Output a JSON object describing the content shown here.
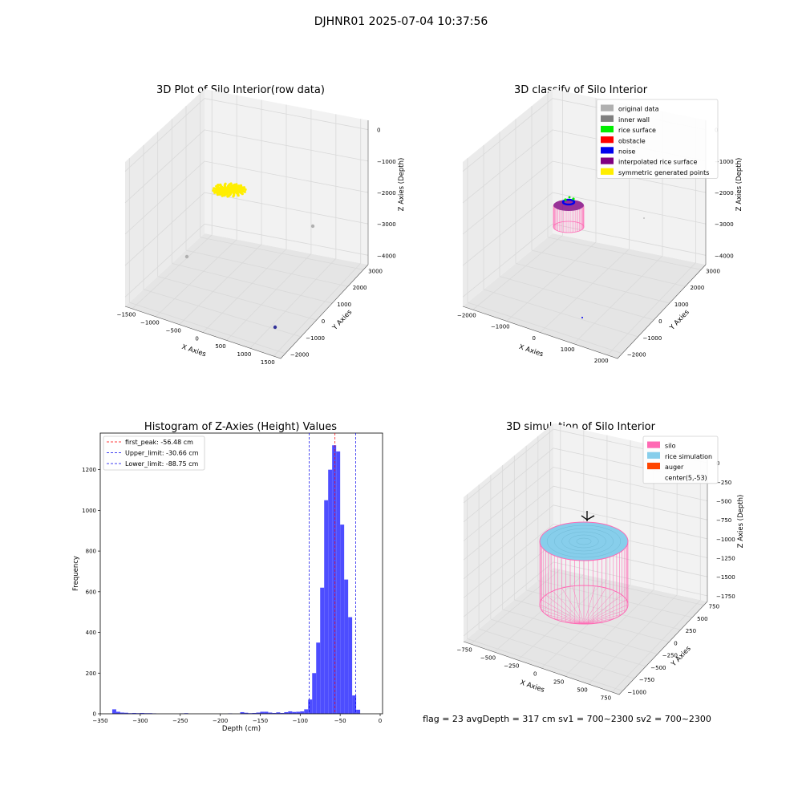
{
  "figure": {
    "suptitle": "DJHNR01 2025-07-04 10:37:56",
    "footer": "flag = 23  avgDepth = 317 cm  sv1 = 700~2300  sv2 = 700~2300"
  },
  "colors": {
    "yellow": "#ffee00",
    "gray": "#b0b0b0",
    "darkgray": "#808080",
    "green": "#00ee00",
    "red": "#ff0000",
    "blue": "#0000ee",
    "purple": "#800080",
    "pink": "#ff69b4",
    "skyblue": "#87ceeb",
    "orange": "#ff4500",
    "hist": "#4d4dff"
  },
  "chart_data": [
    {
      "type": "scatter",
      "title": "3D Plot of Silo Interior(row data)",
      "xlabel": "X Axies",
      "ylabel": "Y Axies",
      "zlabel": "Z Axies (Depth)",
      "x_ticks": [
        "−1500",
        "−1000",
        "−500",
        "0",
        "500",
        "1000",
        "1500"
      ],
      "y_ticks": [
        "−2000",
        "−1000",
        "0",
        "1000",
        "2000",
        "3000"
      ],
      "z_ticks": [
        "0",
        "−1000",
        "−2000",
        "−3000",
        "−4000"
      ]
    },
    {
      "type": "scatter",
      "title": "3D classify of Silo Interior",
      "xlabel": "X Axies",
      "ylabel": "Y Axies",
      "zlabel": "Z Axies (Depth)",
      "x_ticks": [
        "−2000",
        "−1000",
        "0",
        "1000",
        "2000"
      ],
      "y_ticks": [
        "−2000",
        "−1000",
        "0",
        "1000",
        "2000",
        "3000"
      ],
      "z_ticks": [
        "0",
        "−1000",
        "−2000",
        "−3000",
        "−4000"
      ],
      "legend": [
        {
          "label": "original data",
          "color": "#b0b0b0"
        },
        {
          "label": "inner wall",
          "color": "#808080"
        },
        {
          "label": "rice surface",
          "color": "#00ee00"
        },
        {
          "label": "obstacle",
          "color": "#ff0000"
        },
        {
          "label": "noise",
          "color": "#0000ee"
        },
        {
          "label": "interpolated rice surface",
          "color": "#800080"
        },
        {
          "label": "symmetric generated points",
          "color": "#ffee00"
        }
      ],
      "legend_loc": "upper right"
    },
    {
      "type": "bar",
      "title": "Histogram of Z-Axies (Height) Values",
      "xlabel": "Depth (cm)",
      "ylabel": "Frequency",
      "xlim": [
        -350,
        3
      ],
      "ylim": [
        0,
        1380
      ],
      "x_ticks": [
        -350,
        -300,
        -250,
        -200,
        -150,
        -100,
        -50,
        0
      ],
      "y_ticks": [
        0,
        200,
        400,
        600,
        800,
        1000,
        1200
      ],
      "bin_width": 5,
      "bins": [
        {
          "x0": -335,
          "v": 22
        },
        {
          "x0": -330,
          "v": 10
        },
        {
          "x0": -325,
          "v": 6
        },
        {
          "x0": -320,
          "v": 5
        },
        {
          "x0": -315,
          "v": 3
        },
        {
          "x0": -310,
          "v": 4
        },
        {
          "x0": -305,
          "v": 3
        },
        {
          "x0": -300,
          "v": 4
        },
        {
          "x0": -295,
          "v": 3
        },
        {
          "x0": -290,
          "v": 3
        },
        {
          "x0": -285,
          "v": 2
        },
        {
          "x0": -250,
          "v": 2
        },
        {
          "x0": -245,
          "v": 3
        },
        {
          "x0": -190,
          "v": 2
        },
        {
          "x0": -175,
          "v": 8
        },
        {
          "x0": -170,
          "v": 5
        },
        {
          "x0": -165,
          "v": 3
        },
        {
          "x0": -160,
          "v": 4
        },
        {
          "x0": -155,
          "v": 6
        },
        {
          "x0": -150,
          "v": 10
        },
        {
          "x0": -145,
          "v": 10
        },
        {
          "x0": -140,
          "v": 6
        },
        {
          "x0": -135,
          "v": 4
        },
        {
          "x0": -130,
          "v": 7
        },
        {
          "x0": -125,
          "v": 4
        },
        {
          "x0": -120,
          "v": 8
        },
        {
          "x0": -115,
          "v": 12
        },
        {
          "x0": -110,
          "v": 9
        },
        {
          "x0": -105,
          "v": 10
        },
        {
          "x0": -100,
          "v": 12
        },
        {
          "x0": -95,
          "v": 22
        },
        {
          "x0": -90,
          "v": 70
        },
        {
          "x0": -85,
          "v": 200
        },
        {
          "x0": -80,
          "v": 350
        },
        {
          "x0": -75,
          "v": 620
        },
        {
          "x0": -70,
          "v": 1050
        },
        {
          "x0": -65,
          "v": 1200
        },
        {
          "x0": -60,
          "v": 1320
        },
        {
          "x0": -55,
          "v": 1290
        },
        {
          "x0": -50,
          "v": 930
        },
        {
          "x0": -45,
          "v": 660
        },
        {
          "x0": -40,
          "v": 475
        },
        {
          "x0": -35,
          "v": 90
        },
        {
          "x0": -30,
          "v": 20
        }
      ],
      "vlines": [
        {
          "x": -56.48,
          "color": "#ff0000",
          "label": "first_peak: -56.48 cm"
        },
        {
          "x": -30.66,
          "color": "#0000ee",
          "label": "Upper_limit: -30.66 cm"
        },
        {
          "x": -88.75,
          "color": "#0000ee",
          "label": "Lower_limit: -88.75 cm"
        }
      ],
      "legend_loc": "upper left"
    },
    {
      "type": "scatter",
      "title": "3D simulation of Silo Interior",
      "xlabel": "X Axies",
      "ylabel": "Y Axies",
      "zlabel": "Z Axies (Depth)",
      "x_ticks": [
        "−750",
        "−500",
        "−250",
        "0",
        "250",
        "500",
        "750"
      ],
      "y_ticks": [
        "−1000",
        "−750",
        "−500",
        "−250",
        "0",
        "250",
        "500",
        "750"
      ],
      "z_ticks": [
        "0",
        "−250",
        "−500",
        "−750",
        "−1000",
        "−1250",
        "−1500",
        "−1750"
      ],
      "legend": [
        {
          "label": "silo",
          "color": "#ff69b4"
        },
        {
          "label": "rice simulation",
          "color": "#87ceeb"
        },
        {
          "label": "auger",
          "color": "#ff4500"
        },
        {
          "label": "center(5,-53)",
          "color": ""
        }
      ],
      "legend_loc": "upper right"
    }
  ]
}
